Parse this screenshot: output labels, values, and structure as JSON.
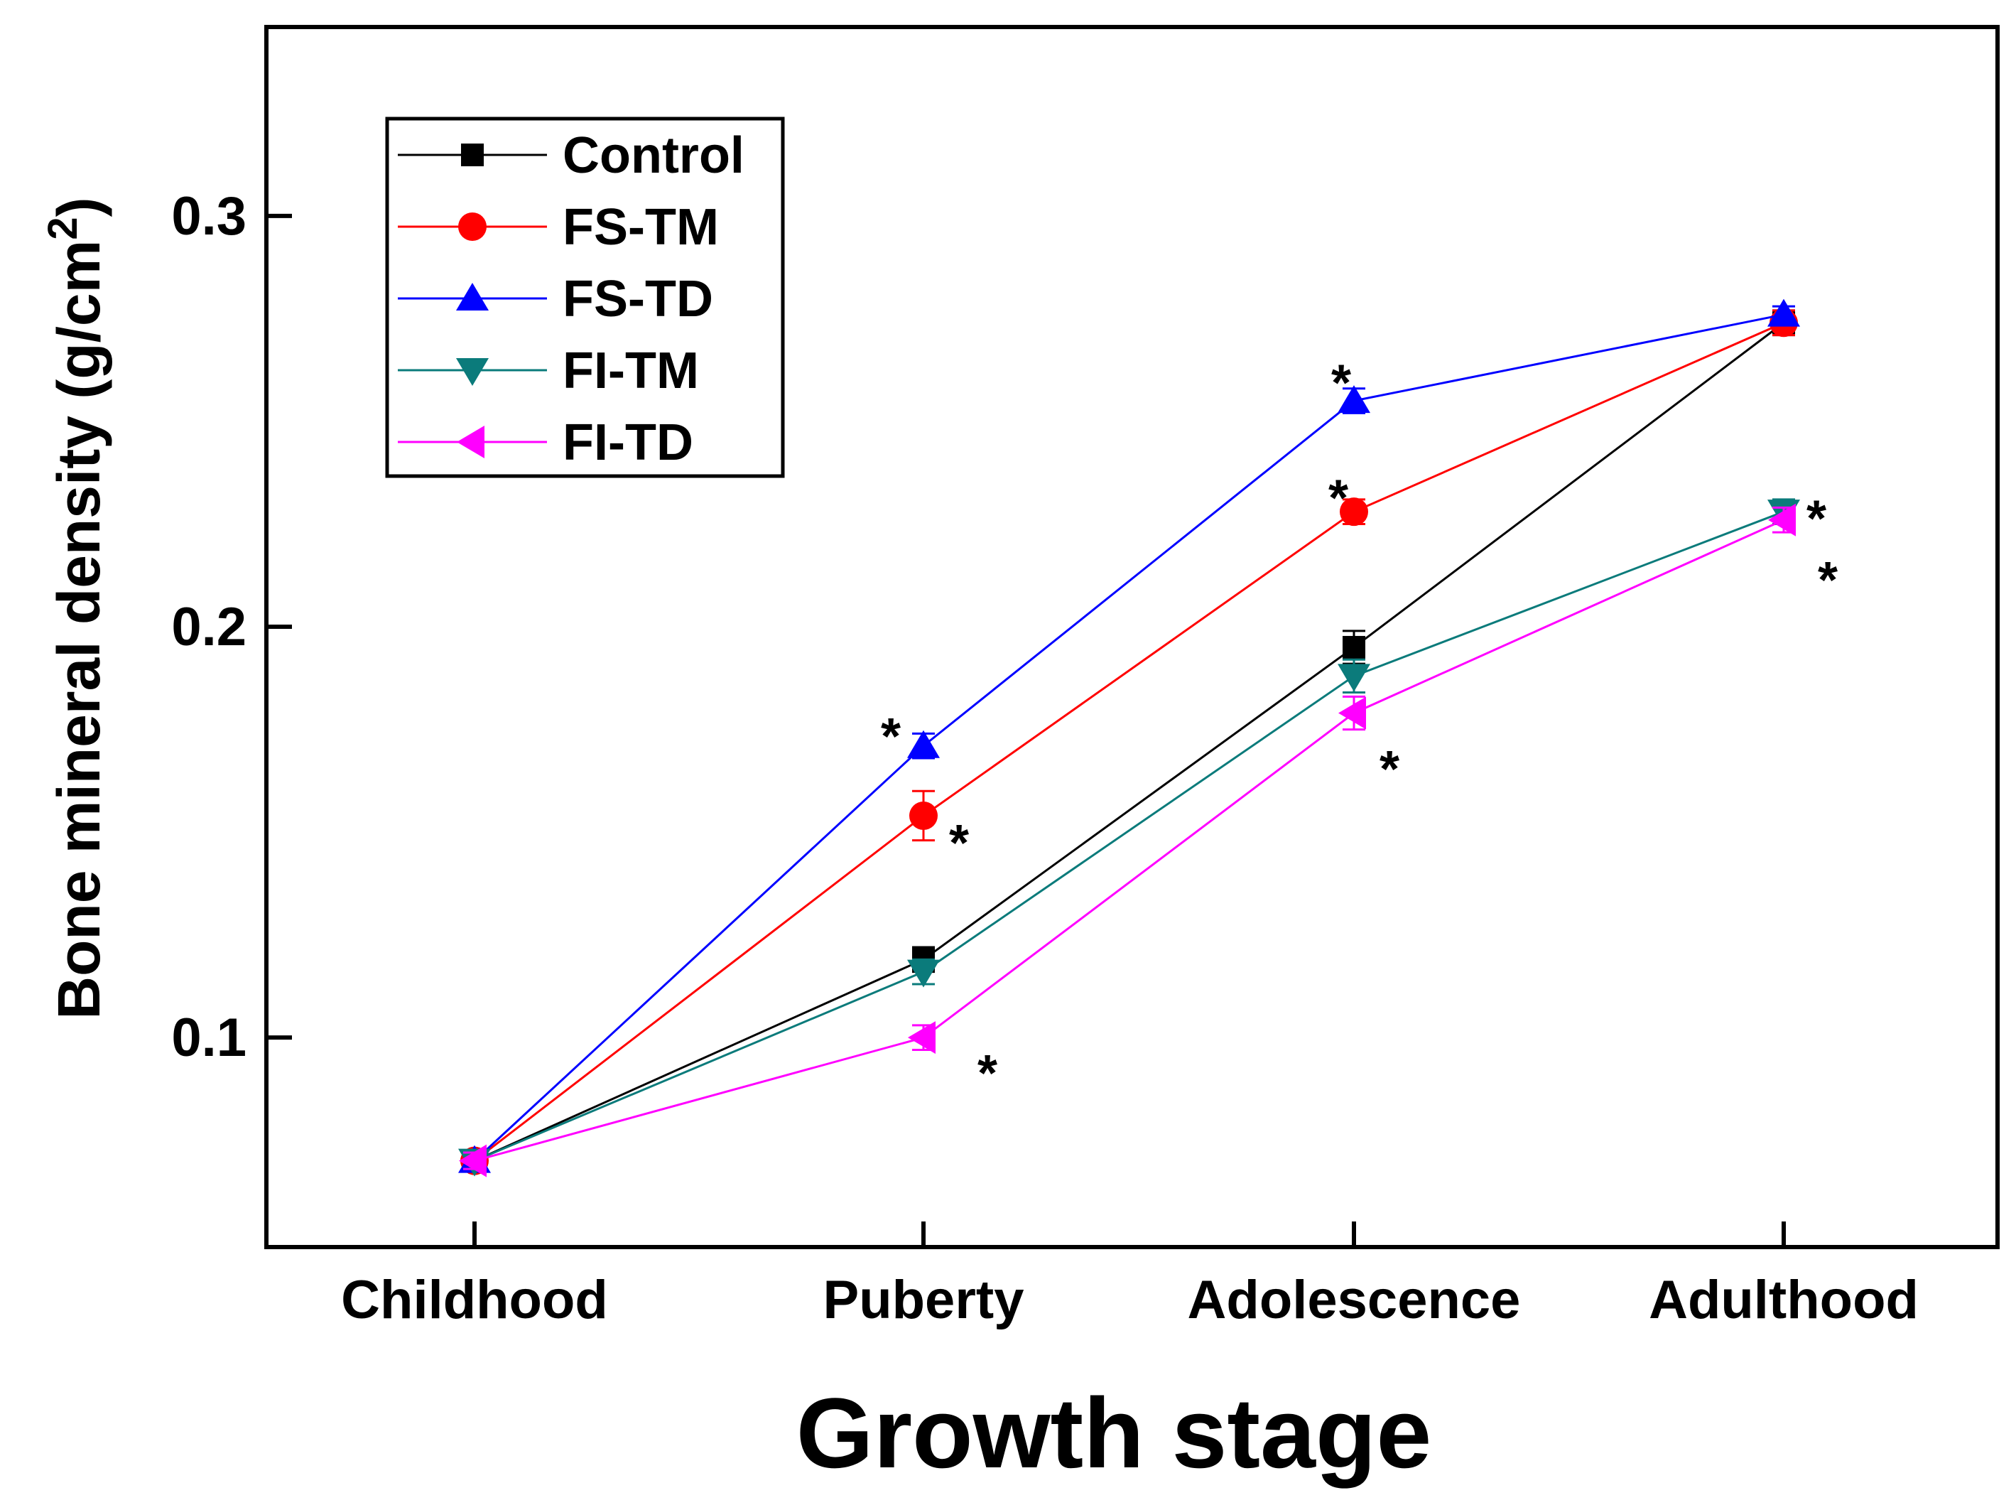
{
  "chart_data": {
    "type": "line",
    "title": "",
    "xlabel": "Growth stage",
    "ylabel": "Bone mineral density (g/cm",
    "ylabel_superscript": "2",
    "ylabel_close": ")",
    "categories": [
      "Childhood",
      "Puberty",
      "Adolescence",
      "Adulthood"
    ],
    "ylim": [
      0.049,
      0.346
    ],
    "yticks": [
      0.1,
      0.2,
      0.3
    ],
    "ytick_labels": [
      "0.1",
      "0.2",
      "0.3"
    ],
    "grid": false,
    "legend_position": "top-left",
    "series": [
      {
        "name": "Control",
        "color": "#000000",
        "marker": "square",
        "values": [
          0.07,
          0.119,
          0.195,
          0.274
        ],
        "errors": [
          0.002,
          0.003,
          0.004,
          0.003
        ]
      },
      {
        "name": "FS-TM",
        "color": "#ff0000",
        "marker": "circle",
        "values": [
          0.07,
          0.154,
          0.228,
          0.274
        ],
        "errors": [
          0.002,
          0.006,
          0.003,
          0.003
        ]
      },
      {
        "name": "FS-TD",
        "color": "#0000ff",
        "marker": "triangle-up",
        "values": [
          0.07,
          0.171,
          0.255,
          0.276
        ],
        "errors": [
          0.002,
          0.003,
          0.003,
          0.002
        ]
      },
      {
        "name": "FI-TM",
        "color": "#0b7b7b",
        "marker": "triangle-down",
        "values": [
          0.07,
          0.116,
          0.188,
          0.228
        ],
        "errors": [
          0.002,
          0.003,
          0.004,
          0.003
        ]
      },
      {
        "name": "FI-TD",
        "color": "#ff00ff",
        "marker": "triangle-left",
        "values": [
          0.07,
          0.1,
          0.179,
          0.226
        ],
        "errors": [
          0.002,
          0.003,
          0.004,
          0.003
        ]
      }
    ],
    "annotations": [
      {
        "text": "*",
        "category": "Puberty",
        "y": 0.176,
        "series": "FS-TD"
      },
      {
        "text": "*",
        "category": "Puberty",
        "y": 0.15,
        "series": "FS-TM"
      },
      {
        "text": "*",
        "category": "Puberty",
        "y": 0.094,
        "series": "FI-TD"
      },
      {
        "text": "*",
        "category": "Adolescence",
        "y": 0.262,
        "series": "FS-TD"
      },
      {
        "text": "*",
        "category": "Adolescence",
        "y": 0.234,
        "series": "FS-TM"
      },
      {
        "text": "*",
        "category": "Adolescence",
        "y": 0.168,
        "series": "FI-TD"
      },
      {
        "text": "*",
        "category": "Adulthood",
        "y": 0.229,
        "series": "FI-TM"
      },
      {
        "text": "*",
        "category": "Adulthood",
        "y": 0.214,
        "series": "FI-TD"
      }
    ]
  }
}
